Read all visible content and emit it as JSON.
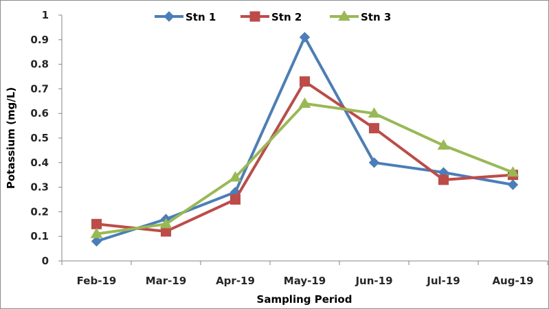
{
  "chart_data": {
    "type": "line",
    "title": "",
    "xlabel": "Sampling Period",
    "ylabel": "Potassium (mg/L)",
    "categories": [
      "Feb-19",
      "Mar-19",
      "Apr-19",
      "May-19",
      "Jun-19",
      "Jul-19",
      "Aug-19"
    ],
    "ylim": [
      0,
      1
    ],
    "yticks": [
      "0",
      "0.1",
      "0.2",
      "0.3",
      "0.4",
      "0.5",
      "0.6",
      "0.7",
      "0.8",
      "0.9",
      "1"
    ],
    "ytick_values": [
      0,
      0.1,
      0.2,
      0.3,
      0.4,
      0.5,
      0.6,
      0.7,
      0.8,
      0.9,
      1
    ],
    "grid": false,
    "legend_position": "top",
    "series": [
      {
        "name": "Stn 1",
        "color": "#4a7ebb",
        "marker": "diamond",
        "values": [
          0.08,
          0.17,
          0.28,
          0.91,
          0.4,
          0.36,
          0.31
        ]
      },
      {
        "name": "Stn 2",
        "color": "#be4b48",
        "marker": "square",
        "values": [
          0.15,
          0.12,
          0.25,
          0.73,
          0.54,
          0.33,
          0.35
        ]
      },
      {
        "name": "Stn 3",
        "color": "#98b954",
        "marker": "triangle",
        "values": [
          0.11,
          0.15,
          0.34,
          0.64,
          0.6,
          0.47,
          0.36
        ]
      }
    ]
  }
}
